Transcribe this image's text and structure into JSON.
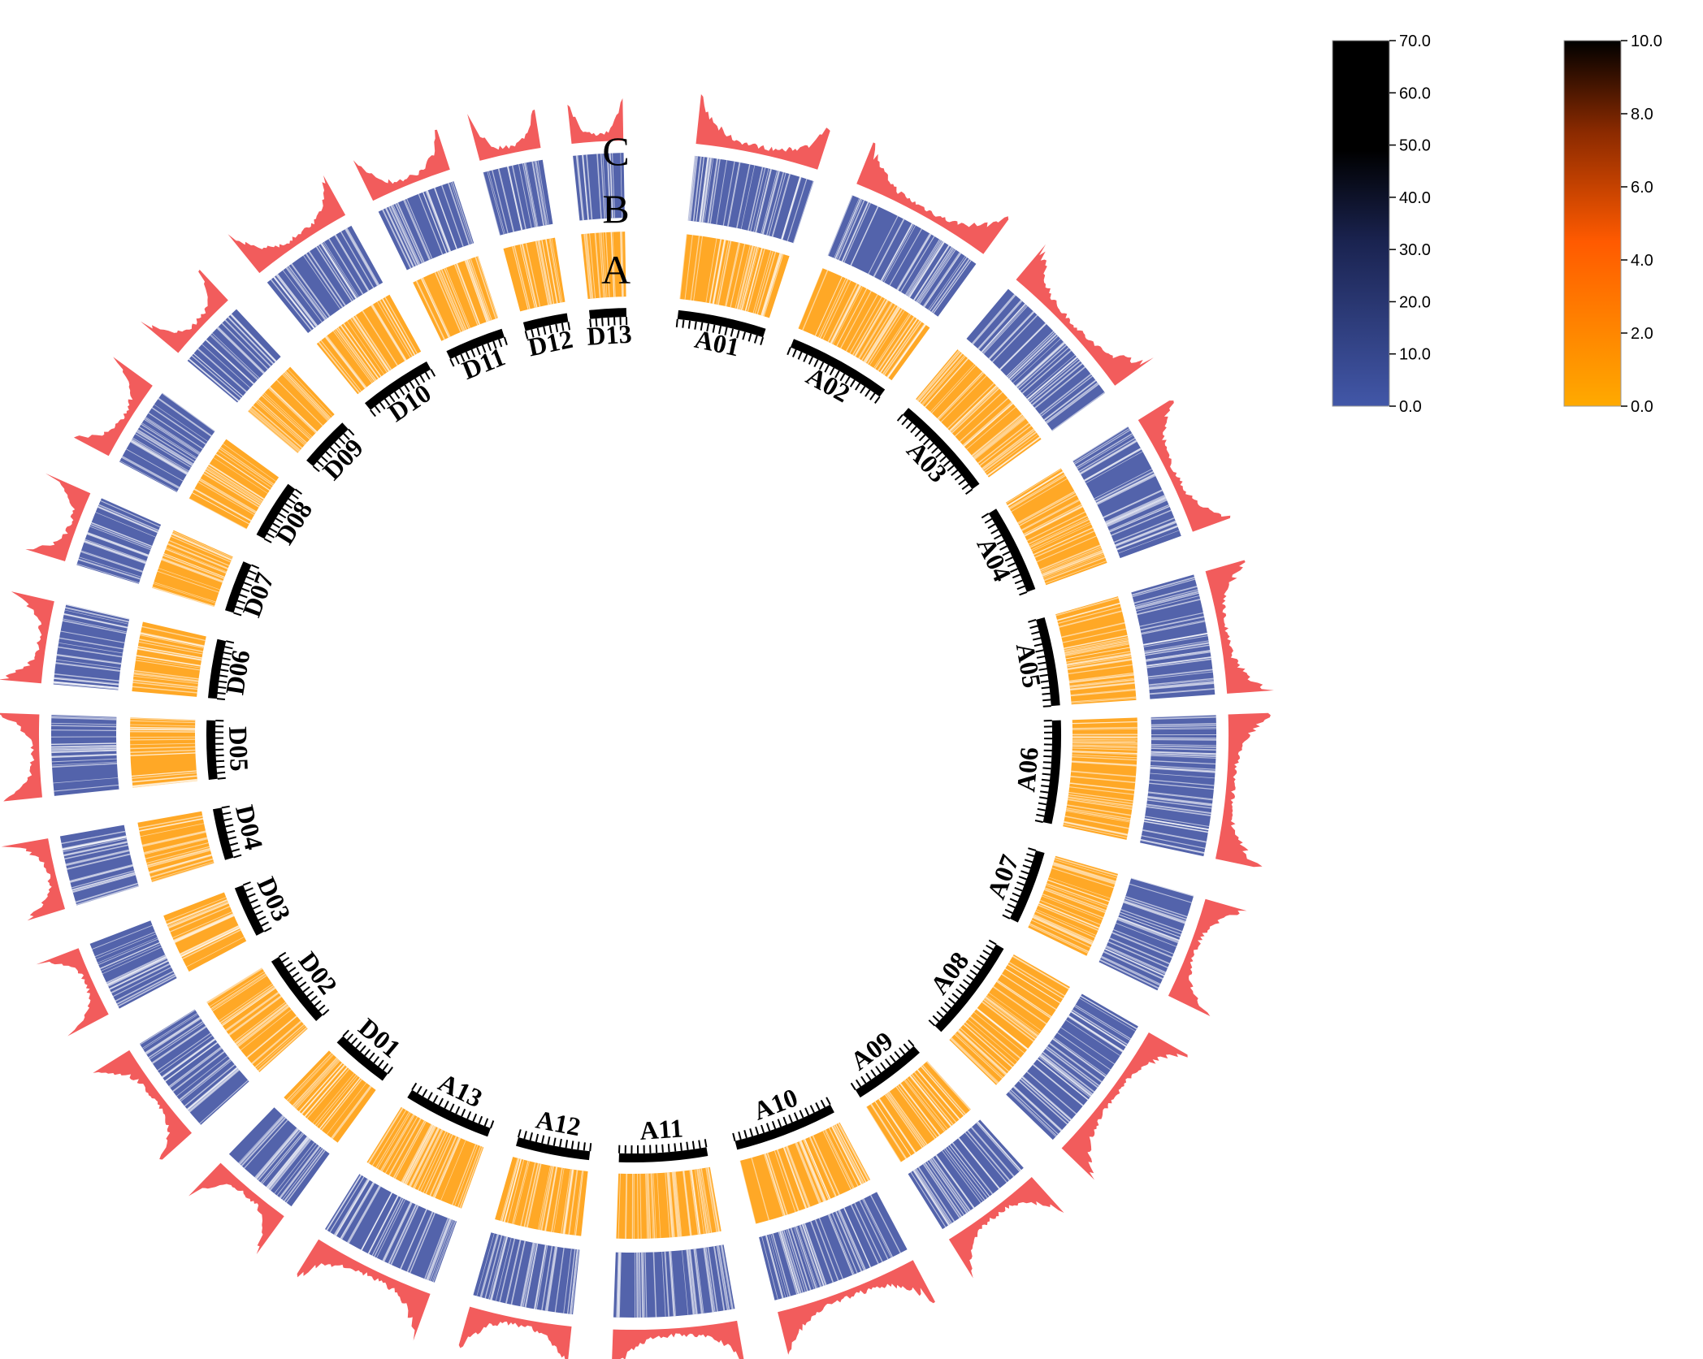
{
  "figure": {
    "ring_labels": [
      "A",
      "B",
      "C"
    ],
    "chromosomes": [
      "A01",
      "A02",
      "A03",
      "A04",
      "A05",
      "A06",
      "A07",
      "A08",
      "A09",
      "A10",
      "A11",
      "A12",
      "A13",
      "D01",
      "D02",
      "D03",
      "D04",
      "D05",
      "D06",
      "D07",
      "D08",
      "D09",
      "D10",
      "D11",
      "D12",
      "D13"
    ],
    "tracks": {
      "A": {
        "gradient": [
          "#ffaa00",
          "#ff8c00",
          "#ff5a00",
          "#8b2a00",
          "#000000"
        ]
      },
      "B": {
        "gradient": [
          "#4257a8",
          "#2b3a78",
          "#10162e",
          "#000000",
          "#000000"
        ]
      },
      "C": {
        "color": "#f25c5c"
      }
    }
  },
  "legends": {
    "blue": {
      "max_label": "70.0",
      "ticks": [
        "70.0",
        "60.0",
        "50.0",
        "40.0",
        "30.0",
        "20.0",
        "10.0",
        "0.0"
      ],
      "colors": {
        "bottom": "#4257a8",
        "mid": "#1a2350",
        "top": "#000000"
      }
    },
    "orange": {
      "ticks": [
        "10.0",
        "8.0",
        "6.0",
        "4.0",
        "2.0",
        "0.0"
      ],
      "colors": {
        "bottom": "#ffaa00",
        "mid": "#ff5a00",
        "top": "#000000"
      }
    }
  }
}
